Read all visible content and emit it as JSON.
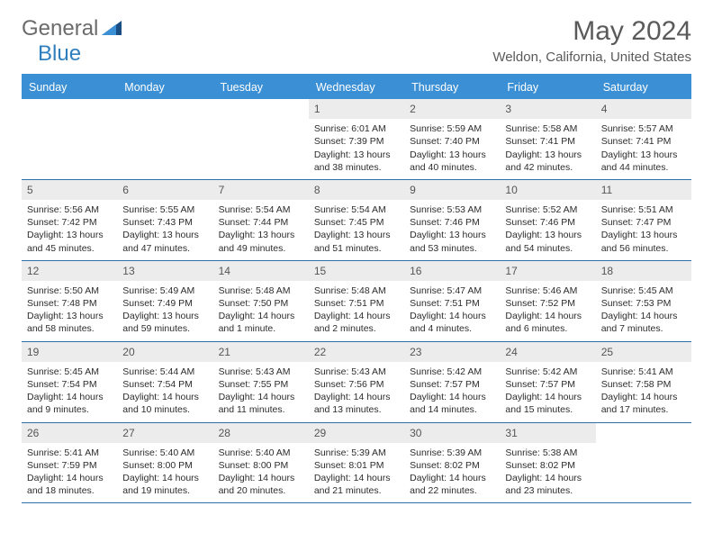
{
  "brand": {
    "part1": "General",
    "part2": "Blue"
  },
  "title": "May 2024",
  "location": "Weldon, California, United States",
  "colors": {
    "header_bar": "#3b8fd4",
    "rule": "#2f6fa8",
    "daynum_bg": "#ececec",
    "text": "#2c2c2c",
    "title_text": "#5a5a5a"
  },
  "days_of_week": [
    "Sunday",
    "Monday",
    "Tuesday",
    "Wednesday",
    "Thursday",
    "Friday",
    "Saturday"
  ],
  "weeks": [
    [
      {
        "empty": true
      },
      {
        "empty": true
      },
      {
        "empty": true
      },
      {
        "n": "1",
        "sunrise": "Sunrise: 6:01 AM",
        "sunset": "Sunset: 7:39 PM",
        "daylight": "Daylight: 13 hours and 38 minutes."
      },
      {
        "n": "2",
        "sunrise": "Sunrise: 5:59 AM",
        "sunset": "Sunset: 7:40 PM",
        "daylight": "Daylight: 13 hours and 40 minutes."
      },
      {
        "n": "3",
        "sunrise": "Sunrise: 5:58 AM",
        "sunset": "Sunset: 7:41 PM",
        "daylight": "Daylight: 13 hours and 42 minutes."
      },
      {
        "n": "4",
        "sunrise": "Sunrise: 5:57 AM",
        "sunset": "Sunset: 7:41 PM",
        "daylight": "Daylight: 13 hours and 44 minutes."
      }
    ],
    [
      {
        "n": "5",
        "sunrise": "Sunrise: 5:56 AM",
        "sunset": "Sunset: 7:42 PM",
        "daylight": "Daylight: 13 hours and 45 minutes."
      },
      {
        "n": "6",
        "sunrise": "Sunrise: 5:55 AM",
        "sunset": "Sunset: 7:43 PM",
        "daylight": "Daylight: 13 hours and 47 minutes."
      },
      {
        "n": "7",
        "sunrise": "Sunrise: 5:54 AM",
        "sunset": "Sunset: 7:44 PM",
        "daylight": "Daylight: 13 hours and 49 minutes."
      },
      {
        "n": "8",
        "sunrise": "Sunrise: 5:54 AM",
        "sunset": "Sunset: 7:45 PM",
        "daylight": "Daylight: 13 hours and 51 minutes."
      },
      {
        "n": "9",
        "sunrise": "Sunrise: 5:53 AM",
        "sunset": "Sunset: 7:46 PM",
        "daylight": "Daylight: 13 hours and 53 minutes."
      },
      {
        "n": "10",
        "sunrise": "Sunrise: 5:52 AM",
        "sunset": "Sunset: 7:46 PM",
        "daylight": "Daylight: 13 hours and 54 minutes."
      },
      {
        "n": "11",
        "sunrise": "Sunrise: 5:51 AM",
        "sunset": "Sunset: 7:47 PM",
        "daylight": "Daylight: 13 hours and 56 minutes."
      }
    ],
    [
      {
        "n": "12",
        "sunrise": "Sunrise: 5:50 AM",
        "sunset": "Sunset: 7:48 PM",
        "daylight": "Daylight: 13 hours and 58 minutes."
      },
      {
        "n": "13",
        "sunrise": "Sunrise: 5:49 AM",
        "sunset": "Sunset: 7:49 PM",
        "daylight": "Daylight: 13 hours and 59 minutes."
      },
      {
        "n": "14",
        "sunrise": "Sunrise: 5:48 AM",
        "sunset": "Sunset: 7:50 PM",
        "daylight": "Daylight: 14 hours and 1 minute."
      },
      {
        "n": "15",
        "sunrise": "Sunrise: 5:48 AM",
        "sunset": "Sunset: 7:51 PM",
        "daylight": "Daylight: 14 hours and 2 minutes."
      },
      {
        "n": "16",
        "sunrise": "Sunrise: 5:47 AM",
        "sunset": "Sunset: 7:51 PM",
        "daylight": "Daylight: 14 hours and 4 minutes."
      },
      {
        "n": "17",
        "sunrise": "Sunrise: 5:46 AM",
        "sunset": "Sunset: 7:52 PM",
        "daylight": "Daylight: 14 hours and 6 minutes."
      },
      {
        "n": "18",
        "sunrise": "Sunrise: 5:45 AM",
        "sunset": "Sunset: 7:53 PM",
        "daylight": "Daylight: 14 hours and 7 minutes."
      }
    ],
    [
      {
        "n": "19",
        "sunrise": "Sunrise: 5:45 AM",
        "sunset": "Sunset: 7:54 PM",
        "daylight": "Daylight: 14 hours and 9 minutes."
      },
      {
        "n": "20",
        "sunrise": "Sunrise: 5:44 AM",
        "sunset": "Sunset: 7:54 PM",
        "daylight": "Daylight: 14 hours and 10 minutes."
      },
      {
        "n": "21",
        "sunrise": "Sunrise: 5:43 AM",
        "sunset": "Sunset: 7:55 PM",
        "daylight": "Daylight: 14 hours and 11 minutes."
      },
      {
        "n": "22",
        "sunrise": "Sunrise: 5:43 AM",
        "sunset": "Sunset: 7:56 PM",
        "daylight": "Daylight: 14 hours and 13 minutes."
      },
      {
        "n": "23",
        "sunrise": "Sunrise: 5:42 AM",
        "sunset": "Sunset: 7:57 PM",
        "daylight": "Daylight: 14 hours and 14 minutes."
      },
      {
        "n": "24",
        "sunrise": "Sunrise: 5:42 AM",
        "sunset": "Sunset: 7:57 PM",
        "daylight": "Daylight: 14 hours and 15 minutes."
      },
      {
        "n": "25",
        "sunrise": "Sunrise: 5:41 AM",
        "sunset": "Sunset: 7:58 PM",
        "daylight": "Daylight: 14 hours and 17 minutes."
      }
    ],
    [
      {
        "n": "26",
        "sunrise": "Sunrise: 5:41 AM",
        "sunset": "Sunset: 7:59 PM",
        "daylight": "Daylight: 14 hours and 18 minutes."
      },
      {
        "n": "27",
        "sunrise": "Sunrise: 5:40 AM",
        "sunset": "Sunset: 8:00 PM",
        "daylight": "Daylight: 14 hours and 19 minutes."
      },
      {
        "n": "28",
        "sunrise": "Sunrise: 5:40 AM",
        "sunset": "Sunset: 8:00 PM",
        "daylight": "Daylight: 14 hours and 20 minutes."
      },
      {
        "n": "29",
        "sunrise": "Sunrise: 5:39 AM",
        "sunset": "Sunset: 8:01 PM",
        "daylight": "Daylight: 14 hours and 21 minutes."
      },
      {
        "n": "30",
        "sunrise": "Sunrise: 5:39 AM",
        "sunset": "Sunset: 8:02 PM",
        "daylight": "Daylight: 14 hours and 22 minutes."
      },
      {
        "n": "31",
        "sunrise": "Sunrise: 5:38 AM",
        "sunset": "Sunset: 8:02 PM",
        "daylight": "Daylight: 14 hours and 23 minutes."
      },
      {
        "empty": true
      }
    ]
  ]
}
